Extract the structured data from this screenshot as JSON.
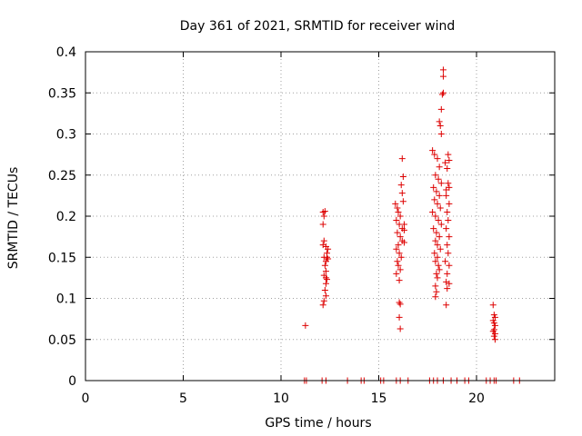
{
  "chart_data": {
    "type": "scatter",
    "title": "Day 361 of 2021, SRMTID for receiver wind",
    "xlabel": "GPS time / hours",
    "ylabel": "SRMTID / TECUs",
    "xlim": [
      0,
      24
    ],
    "ylim": [
      0,
      0.4
    ],
    "x_ticks": [
      0,
      5,
      10,
      15,
      20
    ],
    "x_tick_labels": [
      "0",
      "5",
      "10",
      "15",
      "20"
    ],
    "y_ticks": [
      0,
      0.05,
      0.1,
      0.15,
      0.2,
      0.25,
      0.3,
      0.35,
      0.4
    ],
    "y_tick_labels": [
      "0",
      "0.05",
      "0.1",
      "0.15",
      "0.2",
      "0.25",
      "0.3",
      "0.35",
      "0.4"
    ],
    "grid": true,
    "marker": "+",
    "marker_color": "#dd0000",
    "series": [
      {
        "name": "SRMTID",
        "points": [
          [
            11.25,
            0.067
          ],
          [
            12.15,
            0.205
          ],
          [
            12.2,
            0.2
          ],
          [
            12.15,
            0.19
          ],
          [
            12.25,
            0.206
          ],
          [
            12.2,
            0.17
          ],
          [
            12.3,
            0.163
          ],
          [
            12.15,
            0.165
          ],
          [
            12.4,
            0.16
          ],
          [
            12.35,
            0.155
          ],
          [
            12.2,
            0.15
          ],
          [
            12.3,
            0.145
          ],
          [
            12.25,
            0.14
          ],
          [
            12.3,
            0.133
          ],
          [
            12.2,
            0.128
          ],
          [
            12.3,
            0.125
          ],
          [
            12.35,
            0.123
          ],
          [
            12.3,
            0.118
          ],
          [
            12.25,
            0.11
          ],
          [
            12.3,
            0.103
          ],
          [
            12.2,
            0.097
          ],
          [
            12.15,
            0.092
          ],
          [
            12.35,
            0.15
          ],
          [
            12.4,
            0.148
          ],
          [
            15.85,
            0.215
          ],
          [
            15.95,
            0.21
          ],
          [
            16.0,
            0.205
          ],
          [
            16.1,
            0.2
          ],
          [
            15.9,
            0.195
          ],
          [
            16.05,
            0.19
          ],
          [
            16.2,
            0.185
          ],
          [
            15.95,
            0.18
          ],
          [
            16.1,
            0.175
          ],
          [
            16.2,
            0.17
          ],
          [
            16.0,
            0.165
          ],
          [
            16.3,
            0.168
          ],
          [
            15.9,
            0.16
          ],
          [
            16.05,
            0.155
          ],
          [
            16.15,
            0.15
          ],
          [
            15.95,
            0.145
          ],
          [
            16.0,
            0.14
          ],
          [
            16.1,
            0.135
          ],
          [
            15.9,
            0.13
          ],
          [
            16.05,
            0.122
          ],
          [
            16.2,
            0.27
          ],
          [
            16.25,
            0.248
          ],
          [
            16.15,
            0.238
          ],
          [
            16.2,
            0.228
          ],
          [
            16.25,
            0.218
          ],
          [
            16.05,
            0.095
          ],
          [
            16.1,
            0.093
          ],
          [
            16.05,
            0.077
          ],
          [
            16.1,
            0.063
          ],
          [
            16.3,
            0.183
          ],
          [
            16.3,
            0.19
          ],
          [
            17.75,
            0.28
          ],
          [
            17.85,
            0.275
          ],
          [
            18.0,
            0.27
          ],
          [
            18.1,
            0.26
          ],
          [
            17.9,
            0.25
          ],
          [
            18.05,
            0.245
          ],
          [
            18.2,
            0.24
          ],
          [
            17.8,
            0.235
          ],
          [
            17.95,
            0.23
          ],
          [
            18.1,
            0.225
          ],
          [
            17.85,
            0.22
          ],
          [
            18.0,
            0.215
          ],
          [
            18.15,
            0.21
          ],
          [
            17.75,
            0.205
          ],
          [
            17.9,
            0.2
          ],
          [
            18.05,
            0.195
          ],
          [
            18.2,
            0.19
          ],
          [
            17.8,
            0.185
          ],
          [
            17.95,
            0.18
          ],
          [
            18.1,
            0.175
          ],
          [
            17.9,
            0.17
          ],
          [
            18.0,
            0.165
          ],
          [
            18.15,
            0.16
          ],
          [
            17.85,
            0.155
          ],
          [
            18.0,
            0.15
          ],
          [
            17.9,
            0.145
          ],
          [
            18.05,
            0.14
          ],
          [
            18.1,
            0.135
          ],
          [
            17.95,
            0.13
          ],
          [
            18.0,
            0.125
          ],
          [
            17.9,
            0.115
          ],
          [
            17.95,
            0.108
          ],
          [
            17.9,
            0.102
          ],
          [
            18.2,
            0.3
          ],
          [
            18.15,
            0.31
          ],
          [
            18.1,
            0.315
          ],
          [
            18.3,
            0.35
          ],
          [
            18.25,
            0.348
          ],
          [
            18.2,
            0.33
          ],
          [
            18.3,
            0.37
          ],
          [
            18.3,
            0.378
          ],
          [
            18.4,
            0.265
          ],
          [
            18.5,
            0.258
          ],
          [
            18.55,
            0.24
          ],
          [
            18.6,
            0.235
          ],
          [
            18.45,
            0.225
          ],
          [
            18.6,
            0.215
          ],
          [
            18.5,
            0.205
          ],
          [
            18.55,
            0.195
          ],
          [
            18.45,
            0.185
          ],
          [
            18.6,
            0.175
          ],
          [
            18.5,
            0.165
          ],
          [
            18.55,
            0.155
          ],
          [
            18.4,
            0.145
          ],
          [
            18.6,
            0.14
          ],
          [
            18.5,
            0.13
          ],
          [
            18.45,
            0.12
          ],
          [
            18.6,
            0.118
          ],
          [
            18.5,
            0.112
          ],
          [
            18.45,
            0.092
          ],
          [
            18.55,
            0.275
          ],
          [
            18.6,
            0.268
          ],
          [
            18.45,
            0.232
          ],
          [
            20.85,
            0.092
          ],
          [
            20.9,
            0.08
          ],
          [
            20.95,
            0.077
          ],
          [
            20.85,
            0.073
          ],
          [
            20.9,
            0.07
          ],
          [
            20.95,
            0.067
          ],
          [
            20.9,
            0.062
          ],
          [
            20.85,
            0.06
          ],
          [
            20.95,
            0.057
          ],
          [
            20.9,
            0.054
          ],
          [
            20.95,
            0.05
          ],
          [
            11.2,
            0.0
          ],
          [
            11.3,
            0.0
          ],
          [
            12.1,
            0.0
          ],
          [
            12.3,
            0.0
          ],
          [
            13.4,
            0.0
          ],
          [
            14.1,
            0.0
          ],
          [
            14.25,
            0.0
          ],
          [
            15.1,
            0.0
          ],
          [
            15.25,
            0.0
          ],
          [
            15.9,
            0.0
          ],
          [
            16.1,
            0.0
          ],
          [
            16.5,
            0.0
          ],
          [
            17.6,
            0.0
          ],
          [
            17.8,
            0.0
          ],
          [
            18.0,
            0.0
          ],
          [
            18.3,
            0.0
          ],
          [
            18.7,
            0.0
          ],
          [
            19.0,
            0.0
          ],
          [
            19.4,
            0.0
          ],
          [
            19.6,
            0.0
          ],
          [
            20.5,
            0.0
          ],
          [
            20.7,
            0.0
          ],
          [
            20.9,
            0.0
          ],
          [
            21.0,
            0.0
          ],
          [
            21.9,
            0.0
          ],
          [
            22.2,
            0.0
          ]
        ]
      }
    ]
  }
}
